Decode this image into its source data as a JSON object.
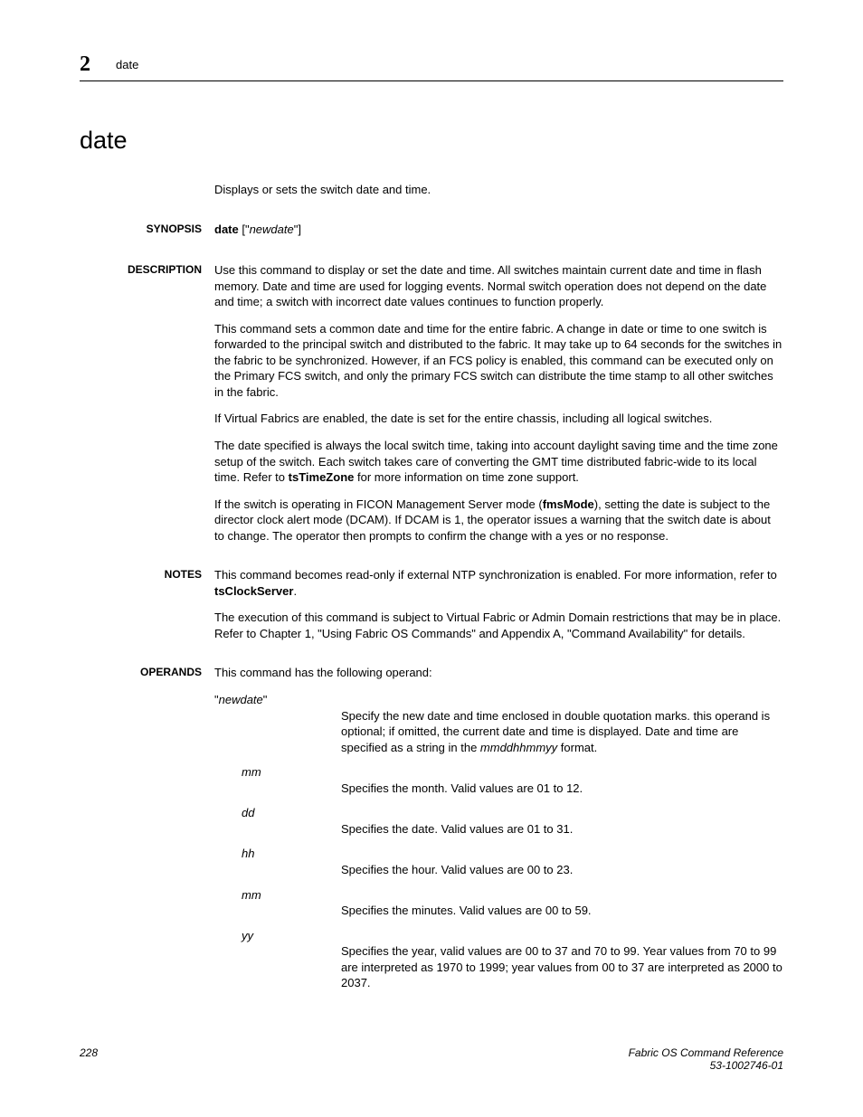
{
  "header": {
    "chapter": "2",
    "title": "date"
  },
  "main_title": "date",
  "summary": "Displays or sets the switch date and time.",
  "synopsis": {
    "label": "SYNOPSIS",
    "cmd": "date",
    "arg_open": " [\"",
    "arg_name": "newdate",
    "arg_close": "\"]"
  },
  "description": {
    "label": "DESCRIPTION",
    "p1": "Use this command to display or set the date and time. All switches maintain current date and time in flash memory. Date and time are used for logging events. Normal switch operation does not depend on the date and time; a switch with incorrect date values continues to function properly.",
    "p2": "This command sets a common date and time for the entire fabric. A change in date or time to one switch is forwarded to the principal switch and distributed to the fabric. It may take up to 64 seconds for the switches in the fabric to be synchronized. However, if an FCS policy is enabled, this command can be executed only on the Primary FCS switch, and only the primary FCS switch can distribute the time stamp to all other switches in the fabric.",
    "p3": "If Virtual Fabrics are enabled, the date is set for the entire chassis, including all logical switches.",
    "p4a": "The date specified is always the local switch time, taking into account daylight saving time and the time zone setup of the switch. Each switch takes care of converting the GMT time distributed fabric-wide to its local time. Refer to ",
    "p4b": "tsTimeZone",
    "p4c": " for more information on time zone support.",
    "p5a": "If the switch is operating in FICON Management Server mode (",
    "p5b": "fmsMode",
    "p5c": "), setting the date is subject to the director clock alert mode (DCAM). If DCAM is 1, the operator issues a warning that the switch date is about to change. The operator then prompts to confirm the change with a yes or no response."
  },
  "notes": {
    "label": "NOTES",
    "p1a": "This command becomes read-only if external NTP synchronization is enabled. For more information, refer to ",
    "p1b": "tsClockServer",
    "p1c": ".",
    "p2": "The execution of this command is subject to Virtual Fabric or Admin Domain restrictions that may be in place. Refer to Chapter 1, \"Using Fabric OS Commands\" and Appendix A, \"Command Availability\" for details."
  },
  "operands": {
    "label": "OPERANDS",
    "intro": "This command has the following operand:",
    "newdate": {
      "term_q1": "\"",
      "term": "newdate",
      "term_q2": "\"",
      "desc_a": "Specify the new date and time enclosed in double quotation marks. this operand is optional; if omitted, the current date and time is displayed. Date and time are specified as a string in the ",
      "desc_b": "mmddhhmmyy",
      "desc_c": " format."
    },
    "fields": [
      {
        "term": "mm",
        "desc": "Specifies the month. Valid values are 01 to 12."
      },
      {
        "term": "dd",
        "desc": "Specifies the date. Valid values are 01 to 31."
      },
      {
        "term": "hh",
        "desc": "Specifies the hour. Valid values are 00 to 23."
      },
      {
        "term": "mm",
        "desc": "Specifies the minutes. Valid values are 00 to 59."
      },
      {
        "term": "yy",
        "desc": "Specifies the year, valid values are 00 to 37 and 70 to 99. Year values from 70 to 99 are interpreted as 1970 to 1999; year values from 00 to 37 are interpreted as 2000 to 2037."
      }
    ]
  },
  "footer": {
    "page_num": "228",
    "ref_title": "Fabric OS Command Reference",
    "ref_num": "53-1002746-01"
  }
}
